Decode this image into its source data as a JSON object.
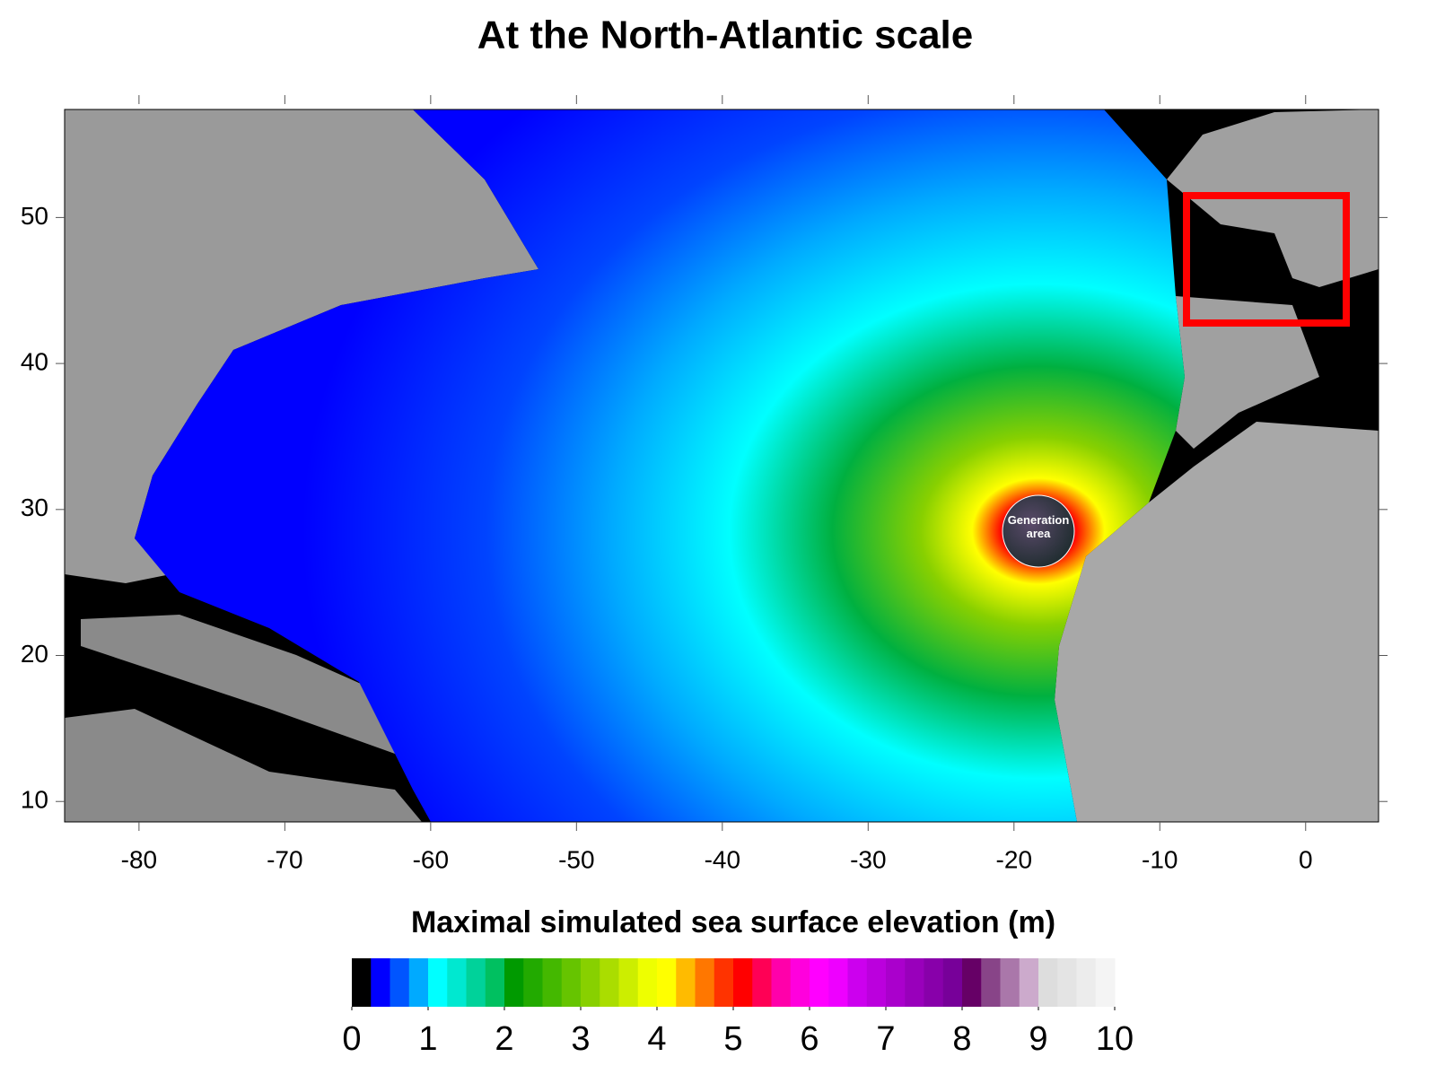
{
  "title": "At the North-Atlantic scale",
  "map": {
    "xlim": [
      -85.1,
      5
    ],
    "ylim": [
      8.6,
      57.4
    ],
    "xticks": [
      -80,
      -70,
      -60,
      -50,
      -40,
      -30,
      -20,
      -10,
      0
    ],
    "yticks": [
      10,
      20,
      30,
      40,
      50
    ],
    "annotation": "Generation area"
  },
  "colorbar": {
    "title": "Maximal simulated sea surface elevation (m)",
    "lim": [
      0,
      10
    ],
    "ticks": [
      0,
      1,
      2,
      3,
      4,
      5,
      6,
      7,
      8,
      9,
      10
    ],
    "colors": [
      "#000000",
      "#0000ff",
      "#0055ff",
      "#00aaff",
      "#00ffff",
      "#00e8d0",
      "#00d29a",
      "#00c060",
      "#009a00",
      "#22aa00",
      "#44b800",
      "#66c400",
      "#88d000",
      "#aadd00",
      "#ccee00",
      "#eeff00",
      "#ffff00",
      "#ffbb00",
      "#ff7700",
      "#ff3300",
      "#ff0000",
      "#ff0055",
      "#ff00aa",
      "#ff00dd",
      "#ff00ff",
      "#ee00ff",
      "#cc00ee",
      "#bb00dd",
      "#aa00cc",
      "#9900bb",
      "#8800aa",
      "#770099",
      "#660066",
      "#884488",
      "#aa77aa",
      "#ccaacc",
      "#dddddd",
      "#e4e4e4",
      "#ececec",
      "#f4f4f4"
    ]
  }
}
